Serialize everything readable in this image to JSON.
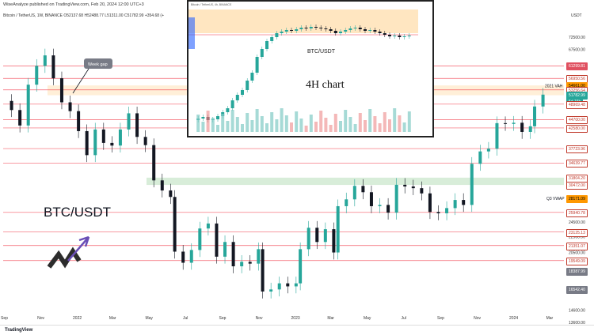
{
  "header": {
    "left": "WiseAnalyze published on TradingView.com, Feb 20, 2024 12:00 UTC+3",
    "symbol_line": "Bitcoin / TetherUS, 1W, BINANCE O52137.68 H52488.77 L51311.00 C51782.99 +354.68 (+"
  },
  "unit": "USDT",
  "footer": {
    "brand": "TradingView"
  },
  "watermark": {
    "pair": "BTC/USDT"
  },
  "annotations": {
    "week_gap": "Week gap",
    "vah_2021": "2021 VAH",
    "q3_vwap": "Q3 VWAP"
  },
  "inset": {
    "header": "Bitcoin / TetherUS, 4h, BINANCE",
    "pair": "BTC/USDT",
    "title": "4H chart"
  },
  "price_labels": [
    {
      "text": "61299.81",
      "bg": "#e05060",
      "fg": "#ffffff"
    },
    {
      "text": "56950.56",
      "bg": "#ffffff",
      "fg": "#c0392b"
    },
    {
      "text": "54661.00",
      "bg": "#ff9800",
      "fg": "#000000"
    },
    {
      "text": "53256.64",
      "bg": "#ffffff",
      "fg": "#c0392b"
    },
    {
      "text": "51782.99",
      "bg": "#26a69a",
      "fg": "#ffffff"
    },
    {
      "text": "5d 15h",
      "bg": "#26a69a",
      "fg": "#ffffff"
    },
    {
      "text": "48969.48",
      "bg": "#ffffff",
      "fg": "#c0392b"
    },
    {
      "text": "44700.00",
      "bg": "#ffffff",
      "fg": "#c0392b"
    },
    {
      "text": "42580.00",
      "bg": "#ffffff",
      "fg": "#c0392b"
    },
    {
      "text": "37723.96",
      "bg": "#ffffff",
      "fg": "#c0392b"
    },
    {
      "text": "34639.77",
      "bg": "#ffffff",
      "fg": "#c0392b"
    },
    {
      "text": "31804.20",
      "bg": "#ffffff",
      "fg": "#c0392b"
    },
    {
      "text": "30472.00",
      "bg": "#ffffff",
      "fg": "#c0392b"
    },
    {
      "text": "28171.09",
      "bg": "#ff9800",
      "fg": "#000000"
    },
    {
      "text": "25940.78",
      "bg": "#ffffff",
      "fg": "#c0392b"
    },
    {
      "text": "23125.13",
      "bg": "#ffffff",
      "fg": "#c0392b"
    },
    {
      "text": "21351.07",
      "bg": "#ffffff",
      "fg": "#c0392b"
    },
    {
      "text": "19549.09",
      "bg": "#ffffff",
      "fg": "#c0392b"
    },
    {
      "text": "18387.99",
      "bg": "#787b86",
      "fg": "#ffffff"
    },
    {
      "text": "16542.40",
      "bg": "#787b86",
      "fg": "#ffffff"
    }
  ],
  "chart_data": {
    "type": "candlestick",
    "title": "",
    "timeframe": "1W",
    "y_scale": "log",
    "ylim": [
      13600,
      80000
    ],
    "y_ticks": [
      "72500.00",
      "67500.00",
      "24500.00",
      "22500.00",
      "20500.00",
      "16542.40",
      "14600.00",
      "13600.00"
    ],
    "x_ticks": [
      "Sep",
      "Nov",
      "2022",
      "Mar",
      "May",
      "Jul",
      "Sep",
      "Nov",
      "2023",
      "Mar",
      "May",
      "Jul",
      "Sep",
      "Nov",
      "2024",
      "Mar"
    ],
    "x_range": [
      "2021-08-30",
      "2024-03-25"
    ],
    "levels": [
      {
        "price": 61299.81,
        "kind": "resistance",
        "color": "#f23645"
      },
      {
        "price": 56950.56,
        "kind": "level",
        "color": "#f23645"
      },
      {
        "price": 53256.64,
        "kind": "level",
        "color": "#f23645"
      },
      {
        "price": 48969.48,
        "kind": "level",
        "color": "#f23645"
      },
      {
        "price": 44700.0,
        "kind": "level",
        "color": "#f23645"
      },
      {
        "price": 42580.0,
        "kind": "level",
        "color": "#f23645"
      },
      {
        "price": 37723.96,
        "kind": "level",
        "color": "#f23645"
      },
      {
        "price": 34639.77,
        "kind": "level",
        "color": "#f23645"
      },
      {
        "price": 25940.78,
        "kind": "level",
        "color": "#f23645"
      },
      {
        "price": 23125.13,
        "kind": "level",
        "color": "#f23645"
      },
      {
        "price": 21351.07,
        "kind": "level",
        "color": "#f23645"
      },
      {
        "price": 19549.09,
        "kind": "level",
        "color": "#f23645"
      }
    ],
    "zones": [
      {
        "from": 30472.0,
        "to": 31804.2,
        "color": "#4caf50"
      },
      {
        "from": 51600.0,
        "to": 54661.0,
        "color": "#ffb74d"
      }
    ],
    "weekly_closes": [
      {
        "date": "2021-08-30",
        "close": 49900
      },
      {
        "date": "2021-09-13",
        "close": 47300
      },
      {
        "date": "2021-09-27",
        "close": 43200
      },
      {
        "date": "2021-10-11",
        "close": 54900
      },
      {
        "date": "2021-10-25",
        "close": 61300
      },
      {
        "date": "2021-11-08",
        "close": 65200
      },
      {
        "date": "2021-11-22",
        "close": 57000
      },
      {
        "date": "2021-12-06",
        "close": 49500
      },
      {
        "date": "2021-12-20",
        "close": 47000
      },
      {
        "date": "2022-01-03",
        "close": 41800
      },
      {
        "date": "2022-01-17",
        "close": 36300
      },
      {
        "date": "2022-01-31",
        "close": 42200
      },
      {
        "date": "2022-02-14",
        "close": 39000
      },
      {
        "date": "2022-02-28",
        "close": 38400
      },
      {
        "date": "2022-03-14",
        "close": 42200
      },
      {
        "date": "2022-03-28",
        "close": 46400
      },
      {
        "date": "2022-04-11",
        "close": 40400
      },
      {
        "date": "2022-04-25",
        "close": 38500
      },
      {
        "date": "2022-05-09",
        "close": 31300
      },
      {
        "date": "2022-05-23",
        "close": 29500
      },
      {
        "date": "2022-06-06",
        "close": 28400
      },
      {
        "date": "2022-06-13",
        "close": 20600
      },
      {
        "date": "2022-06-27",
        "close": 19300
      },
      {
        "date": "2022-07-11",
        "close": 20800
      },
      {
        "date": "2022-07-25",
        "close": 23600
      },
      {
        "date": "2022-08-08",
        "close": 24300
      },
      {
        "date": "2022-08-22",
        "close": 20000
      },
      {
        "date": "2022-09-05",
        "close": 21800
      },
      {
        "date": "2022-09-19",
        "close": 18900
      },
      {
        "date": "2022-10-03",
        "close": 19400
      },
      {
        "date": "2022-10-17",
        "close": 19200
      },
      {
        "date": "2022-10-31",
        "close": 20900
      },
      {
        "date": "2022-11-07",
        "close": 16300
      },
      {
        "date": "2022-11-21",
        "close": 16500
      },
      {
        "date": "2022-12-05",
        "close": 17100
      },
      {
        "date": "2022-12-19",
        "close": 16800
      },
      {
        "date": "2023-01-02",
        "close": 17100
      },
      {
        "date": "2023-01-09",
        "close": 20900
      },
      {
        "date": "2023-01-23",
        "close": 23700
      },
      {
        "date": "2023-02-06",
        "close": 21800
      },
      {
        "date": "2023-02-20",
        "close": 23500
      },
      {
        "date": "2023-03-06",
        "close": 20500
      },
      {
        "date": "2023-03-13",
        "close": 26900
      },
      {
        "date": "2023-03-27",
        "close": 28000
      },
      {
        "date": "2023-04-10",
        "close": 30300
      },
      {
        "date": "2023-04-24",
        "close": 29200
      },
      {
        "date": "2023-05-08",
        "close": 26900
      },
      {
        "date": "2023-05-22",
        "close": 27100
      },
      {
        "date": "2023-06-05",
        "close": 25900
      },
      {
        "date": "2023-06-19",
        "close": 30500
      },
      {
        "date": "2023-07-03",
        "close": 30200
      },
      {
        "date": "2023-07-17",
        "close": 29900
      },
      {
        "date": "2023-07-31",
        "close": 29000
      },
      {
        "date": "2023-08-14",
        "close": 26000
      },
      {
        "date": "2023-08-28",
        "close": 25800
      },
      {
        "date": "2023-09-11",
        "close": 26600
      },
      {
        "date": "2023-09-25",
        "close": 27900
      },
      {
        "date": "2023-10-09",
        "close": 27100
      },
      {
        "date": "2023-10-23",
        "close": 34500
      },
      {
        "date": "2023-11-06",
        "close": 37100
      },
      {
        "date": "2023-11-20",
        "close": 37700
      },
      {
        "date": "2023-12-04",
        "close": 43800
      },
      {
        "date": "2023-12-18",
        "close": 43600
      },
      {
        "date": "2024-01-01",
        "close": 43900
      },
      {
        "date": "2024-01-15",
        "close": 41600
      },
      {
        "date": "2024-01-29",
        "close": 43000
      },
      {
        "date": "2024-02-05",
        "close": 48300
      },
      {
        "date": "2024-02-19",
        "close": 51782.99
      }
    ]
  }
}
